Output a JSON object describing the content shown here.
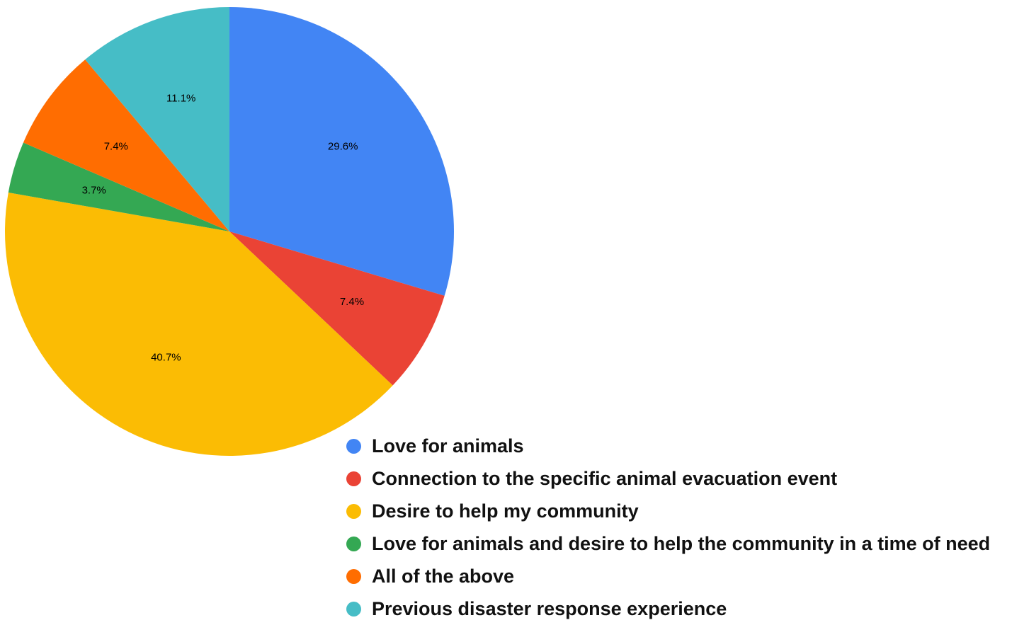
{
  "chart_data": {
    "type": "pie",
    "start_angle_deg": 0,
    "direction": "clockwise",
    "legend_position": "bottom-right",
    "slices": [
      {
        "name": "Love for animals",
        "value": 29.6,
        "label": "29.6%",
        "color": "#4285F4"
      },
      {
        "name": "Connection to the specific animal evacuation event",
        "value": 7.4,
        "label": "7.4%",
        "color": "#EA4335"
      },
      {
        "name": "Desire to help my community",
        "value": 40.7,
        "label": "40.7%",
        "color": "#FBBC04"
      },
      {
        "name": "Love for animals and desire to help the community in a time of need",
        "value": 3.7,
        "label": "3.7%",
        "color": "#34A853"
      },
      {
        "name": "All of the above",
        "value": 7.4,
        "label": "7.4%",
        "color": "#FF6D01"
      },
      {
        "name": "Previous disaster response experience",
        "value": 11.1,
        "label": "11.1%",
        "color": "#46BDC6"
      }
    ]
  }
}
